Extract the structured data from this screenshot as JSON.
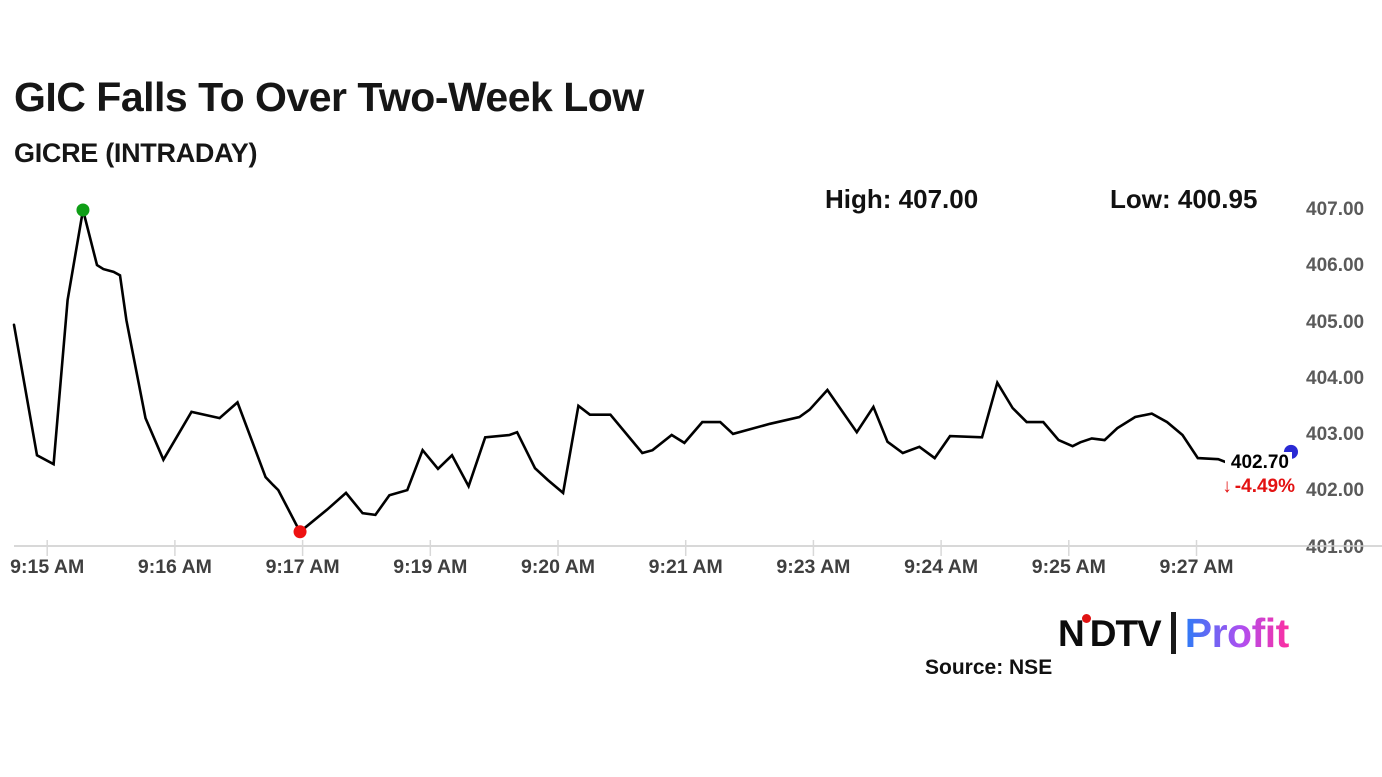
{
  "header": {
    "title": "GIC Falls To Over Two-Week Low",
    "subtitle": "GICRE (INTRADAY)"
  },
  "stats": {
    "high_label": "High:",
    "high_value": "407.00",
    "low_label": "Low:",
    "low_value": "400.95"
  },
  "chart_data": {
    "type": "line",
    "title": "GIC Falls To Over Two-Week Low",
    "subtitle": "GICRE (INTRADAY)",
    "xlabel": "",
    "ylabel": "",
    "grid": "off",
    "legend": "none",
    "ylim": [
      401.0,
      407.0
    ],
    "y_ticks": [
      "407.00",
      "406.00",
      "405.00",
      "404.00",
      "403.00",
      "402.00",
      "401.00"
    ],
    "x_ticks": [
      "9:15 AM",
      "9:16 AM",
      "9:17 AM",
      "9:19 AM",
      "9:20 AM",
      "9:21 AM",
      "9:23 AM",
      "9:24 AM",
      "9:25 AM",
      "9:27 AM"
    ],
    "x_tick_start_frac": 0.026,
    "x_tick_step_frac": 0.1,
    "line_color": "#000000",
    "axis_color": "#cccccc",
    "tick_color": "#d8d8d8",
    "points": [
      [
        0.0,
        404.96
      ],
      [
        0.018,
        402.64
      ],
      [
        0.031,
        402.48
      ],
      [
        0.042,
        405.4
      ],
      [
        0.054,
        407.0
      ],
      [
        0.065,
        406.02
      ],
      [
        0.07,
        405.95
      ],
      [
        0.078,
        405.9
      ],
      [
        0.083,
        405.84
      ],
      [
        0.088,
        405.04
      ],
      [
        0.103,
        403.3
      ],
      [
        0.117,
        402.56
      ],
      [
        0.139,
        403.41
      ],
      [
        0.161,
        403.3
      ],
      [
        0.175,
        403.58
      ],
      [
        0.197,
        402.25
      ],
      [
        0.203,
        402.11
      ],
      [
        0.207,
        402.02
      ],
      [
        0.224,
        401.28
      ],
      [
        0.245,
        401.67
      ],
      [
        0.26,
        401.97
      ],
      [
        0.273,
        401.61
      ],
      [
        0.283,
        401.58
      ],
      [
        0.294,
        401.93
      ],
      [
        0.308,
        402.02
      ],
      [
        0.32,
        402.73
      ],
      [
        0.332,
        402.4
      ],
      [
        0.343,
        402.64
      ],
      [
        0.356,
        402.09
      ],
      [
        0.369,
        402.96
      ],
      [
        0.388,
        403.0
      ],
      [
        0.394,
        403.05
      ],
      [
        0.408,
        402.41
      ],
      [
        0.418,
        402.2
      ],
      [
        0.43,
        401.97
      ],
      [
        0.442,
        403.52
      ],
      [
        0.451,
        403.36
      ],
      [
        0.467,
        403.36
      ],
      [
        0.492,
        402.68
      ],
      [
        0.5,
        402.73
      ],
      [
        0.515,
        403.0
      ],
      [
        0.525,
        402.86
      ],
      [
        0.539,
        403.23
      ],
      [
        0.553,
        403.23
      ],
      [
        0.563,
        403.02
      ],
      [
        0.592,
        403.2
      ],
      [
        0.615,
        403.32
      ],
      [
        0.623,
        403.45
      ],
      [
        0.637,
        403.8
      ],
      [
        0.66,
        403.05
      ],
      [
        0.673,
        403.5
      ],
      [
        0.684,
        402.88
      ],
      [
        0.696,
        402.68
      ],
      [
        0.709,
        402.79
      ],
      [
        0.721,
        402.59
      ],
      [
        0.733,
        402.98
      ],
      [
        0.758,
        402.96
      ],
      [
        0.77,
        403.93
      ],
      [
        0.782,
        403.48
      ],
      [
        0.793,
        403.23
      ],
      [
        0.806,
        403.23
      ],
      [
        0.818,
        402.91
      ],
      [
        0.829,
        402.8
      ],
      [
        0.835,
        402.87
      ],
      [
        0.844,
        402.94
      ],
      [
        0.854,
        402.91
      ],
      [
        0.864,
        403.12
      ],
      [
        0.878,
        403.32
      ],
      [
        0.891,
        403.38
      ],
      [
        0.903,
        403.23
      ],
      [
        0.915,
        403.0
      ],
      [
        0.927,
        402.59
      ],
      [
        0.943,
        402.57
      ],
      [
        0.951,
        402.5
      ],
      [
        1.0,
        402.7
      ]
    ],
    "markers": {
      "high": {
        "x": 0.054,
        "price": 407.0,
        "color": "#0f9e16"
      },
      "low": {
        "x": 0.224,
        "price": 401.28,
        "color": "#ee1111"
      },
      "last": {
        "x": 1.0,
        "price": 402.7,
        "color": "#2929d4"
      }
    },
    "last_price": {
      "value": "402.70",
      "arrow": "↓",
      "change": "-4.49%",
      "change_color": "#e31212"
    }
  },
  "footer": {
    "source": "Source: NSE"
  },
  "logo": {
    "ndtv_n": "N",
    "ndtv_rest": "DTV",
    "profit": "Profit",
    "dot_color": "#e01212"
  }
}
